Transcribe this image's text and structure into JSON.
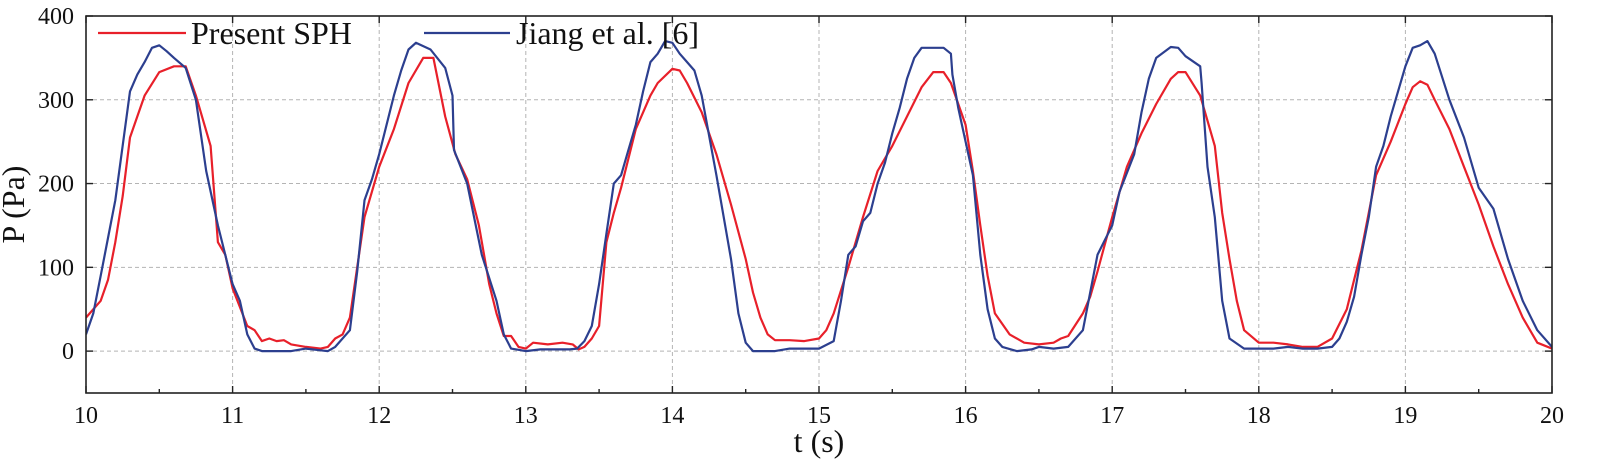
{
  "chart_data": {
    "type": "line",
    "xlabel": "t (s)",
    "ylabel": "P (Pa)",
    "xlim": [
      10,
      20
    ],
    "ylim": [
      -50,
      400
    ],
    "xticks": [
      10,
      11,
      12,
      13,
      14,
      15,
      16,
      17,
      18,
      19,
      20
    ],
    "yticks": [
      0,
      100,
      200,
      300,
      400
    ],
    "grid": true,
    "legend": {
      "placement": "top-left",
      "orientation": "horizontal"
    },
    "series": [
      {
        "name": "Present SPH",
        "color": "#e8202a",
        "points": [
          [
            10.0,
            40
          ],
          [
            10.1,
            60
          ],
          [
            10.15,
            85
          ],
          [
            10.2,
            130
          ],
          [
            10.25,
            185
          ],
          [
            10.3,
            255
          ],
          [
            10.35,
            280
          ],
          [
            10.4,
            305
          ],
          [
            10.5,
            333
          ],
          [
            10.6,
            340
          ],
          [
            10.68,
            340
          ],
          [
            10.75,
            305
          ],
          [
            10.85,
            245
          ],
          [
            10.9,
            130
          ],
          [
            10.95,
            115
          ],
          [
            11.0,
            75
          ],
          [
            11.1,
            30
          ],
          [
            11.15,
            25
          ],
          [
            11.2,
            12
          ],
          [
            11.25,
            15
          ],
          [
            11.3,
            12
          ],
          [
            11.35,
            13
          ],
          [
            11.4,
            8
          ],
          [
            11.5,
            5
          ],
          [
            11.6,
            3
          ],
          [
            11.65,
            5
          ],
          [
            11.7,
            15
          ],
          [
            11.75,
            20
          ],
          [
            11.8,
            40
          ],
          [
            11.85,
            100
          ],
          [
            11.9,
            160
          ],
          [
            12.0,
            220
          ],
          [
            12.1,
            265
          ],
          [
            12.2,
            320
          ],
          [
            12.3,
            350
          ],
          [
            12.37,
            350
          ],
          [
            12.45,
            280
          ],
          [
            12.52,
            235
          ],
          [
            12.6,
            205
          ],
          [
            12.68,
            150
          ],
          [
            12.75,
            80
          ],
          [
            12.8,
            45
          ],
          [
            12.85,
            18
          ],
          [
            12.9,
            18
          ],
          [
            12.95,
            5
          ],
          [
            13.0,
            3
          ],
          [
            13.05,
            10
          ],
          [
            13.15,
            8
          ],
          [
            13.25,
            10
          ],
          [
            13.32,
            8
          ],
          [
            13.36,
            2
          ],
          [
            13.4,
            5
          ],
          [
            13.45,
            15
          ],
          [
            13.5,
            30
          ],
          [
            13.55,
            130
          ],
          [
            13.6,
            165
          ],
          [
            13.65,
            195
          ],
          [
            13.75,
            265
          ],
          [
            13.85,
            305
          ],
          [
            13.9,
            320
          ],
          [
            14.0,
            337
          ],
          [
            14.05,
            335
          ],
          [
            14.1,
            320
          ],
          [
            14.2,
            285
          ],
          [
            14.3,
            235
          ],
          [
            14.4,
            175
          ],
          [
            14.5,
            110
          ],
          [
            14.55,
            70
          ],
          [
            14.6,
            40
          ],
          [
            14.65,
            20
          ],
          [
            14.7,
            13
          ],
          [
            14.8,
            13
          ],
          [
            14.9,
            12
          ],
          [
            15.0,
            15
          ],
          [
            15.05,
            25
          ],
          [
            15.1,
            45
          ],
          [
            15.2,
            100
          ],
          [
            15.3,
            160
          ],
          [
            15.4,
            215
          ],
          [
            15.5,
            245
          ],
          [
            15.6,
            280
          ],
          [
            15.7,
            315
          ],
          [
            15.78,
            333
          ],
          [
            15.85,
            333
          ],
          [
            15.9,
            320
          ],
          [
            16.0,
            270
          ],
          [
            16.05,
            215
          ],
          [
            16.1,
            150
          ],
          [
            16.15,
            90
          ],
          [
            16.2,
            45
          ],
          [
            16.3,
            20
          ],
          [
            16.4,
            10
          ],
          [
            16.5,
            8
          ],
          [
            16.6,
            10
          ],
          [
            16.65,
            15
          ],
          [
            16.7,
            18
          ],
          [
            16.8,
            45
          ],
          [
            16.85,
            65
          ],
          [
            16.9,
            95
          ],
          [
            17.0,
            160
          ],
          [
            17.1,
            220
          ],
          [
            17.2,
            260
          ],
          [
            17.3,
            295
          ],
          [
            17.4,
            325
          ],
          [
            17.45,
            333
          ],
          [
            17.5,
            333
          ],
          [
            17.6,
            305
          ],
          [
            17.7,
            245
          ],
          [
            17.75,
            165
          ],
          [
            17.8,
            110
          ],
          [
            17.85,
            60
          ],
          [
            17.9,
            25
          ],
          [
            18.0,
            10
          ],
          [
            18.1,
            10
          ],
          [
            18.2,
            8
          ],
          [
            18.3,
            5
          ],
          [
            18.4,
            5
          ],
          [
            18.5,
            15
          ],
          [
            18.6,
            50
          ],
          [
            18.7,
            120
          ],
          [
            18.8,
            210
          ],
          [
            18.9,
            250
          ],
          [
            19.0,
            295
          ],
          [
            19.05,
            315
          ],
          [
            19.1,
            322
          ],
          [
            19.15,
            318
          ],
          [
            19.2,
            300
          ],
          [
            19.3,
            265
          ],
          [
            19.4,
            220
          ],
          [
            19.5,
            175
          ],
          [
            19.6,
            125
          ],
          [
            19.7,
            80
          ],
          [
            19.8,
            40
          ],
          [
            19.9,
            10
          ],
          [
            20.0,
            3
          ]
        ]
      },
      {
        "name": "Jiang et al. [6]",
        "color": "#2c3f8f",
        "points": [
          [
            10.0,
            20
          ],
          [
            10.05,
            45
          ],
          [
            10.1,
            90
          ],
          [
            10.15,
            135
          ],
          [
            10.2,
            180
          ],
          [
            10.3,
            310
          ],
          [
            10.35,
            330
          ],
          [
            10.4,
            345
          ],
          [
            10.45,
            362
          ],
          [
            10.5,
            365
          ],
          [
            10.55,
            358
          ],
          [
            10.6,
            350
          ],
          [
            10.68,
            338
          ],
          [
            10.75,
            300
          ],
          [
            10.82,
            215
          ],
          [
            10.9,
            150
          ],
          [
            11.0,
            80
          ],
          [
            11.05,
            60
          ],
          [
            11.1,
            20
          ],
          [
            11.15,
            3
          ],
          [
            11.2,
            0
          ],
          [
            11.3,
            0
          ],
          [
            11.4,
            0
          ],
          [
            11.5,
            3
          ],
          [
            11.6,
            1
          ],
          [
            11.65,
            0
          ],
          [
            11.7,
            5
          ],
          [
            11.8,
            25
          ],
          [
            11.85,
            95
          ],
          [
            11.9,
            180
          ],
          [
            11.95,
            205
          ],
          [
            12.0,
            235
          ],
          [
            12.1,
            305
          ],
          [
            12.15,
            335
          ],
          [
            12.2,
            360
          ],
          [
            12.25,
            368
          ],
          [
            12.35,
            360
          ],
          [
            12.45,
            338
          ],
          [
            12.5,
            305
          ],
          [
            12.51,
            240
          ],
          [
            12.6,
            200
          ],
          [
            12.7,
            115
          ],
          [
            12.8,
            60
          ],
          [
            12.85,
            20
          ],
          [
            12.9,
            3
          ],
          [
            13.0,
            0
          ],
          [
            13.1,
            2
          ],
          [
            13.2,
            2
          ],
          [
            13.3,
            2
          ],
          [
            13.35,
            3
          ],
          [
            13.4,
            12
          ],
          [
            13.45,
            30
          ],
          [
            13.5,
            80
          ],
          [
            13.55,
            140
          ],
          [
            13.6,
            200
          ],
          [
            13.65,
            210
          ],
          [
            13.7,
            240
          ],
          [
            13.75,
            270
          ],
          [
            13.8,
            310
          ],
          [
            13.85,
            345
          ],
          [
            13.9,
            355
          ],
          [
            13.95,
            370
          ],
          [
            14.0,
            368
          ],
          [
            14.05,
            355
          ],
          [
            14.1,
            345
          ],
          [
            14.15,
            335
          ],
          [
            14.2,
            305
          ],
          [
            14.3,
            210
          ],
          [
            14.4,
            110
          ],
          [
            14.45,
            45
          ],
          [
            14.5,
            10
          ],
          [
            14.55,
            0
          ],
          [
            14.7,
            0
          ],
          [
            14.8,
            3
          ],
          [
            15.0,
            3
          ],
          [
            15.1,
            12
          ],
          [
            15.15,
            60
          ],
          [
            15.2,
            115
          ],
          [
            15.25,
            125
          ],
          [
            15.3,
            155
          ],
          [
            15.35,
            165
          ],
          [
            15.4,
            200
          ],
          [
            15.45,
            225
          ],
          [
            15.5,
            260
          ],
          [
            15.55,
            290
          ],
          [
            15.6,
            325
          ],
          [
            15.65,
            350
          ],
          [
            15.7,
            362
          ],
          [
            15.85,
            362
          ],
          [
            15.9,
            355
          ],
          [
            15.91,
            330
          ],
          [
            15.95,
            290
          ],
          [
            16.0,
            250
          ],
          [
            16.05,
            210
          ],
          [
            16.1,
            115
          ],
          [
            16.15,
            50
          ],
          [
            16.2,
            15
          ],
          [
            16.25,
            5
          ],
          [
            16.35,
            0
          ],
          [
            16.45,
            2
          ],
          [
            16.5,
            5
          ],
          [
            16.6,
            3
          ],
          [
            16.7,
            5
          ],
          [
            16.8,
            25
          ],
          [
            16.85,
            70
          ],
          [
            16.9,
            115
          ],
          [
            17.0,
            150
          ],
          [
            17.05,
            190
          ],
          [
            17.15,
            235
          ],
          [
            17.2,
            285
          ],
          [
            17.25,
            325
          ],
          [
            17.3,
            350
          ],
          [
            17.4,
            363
          ],
          [
            17.45,
            362
          ],
          [
            17.5,
            352
          ],
          [
            17.6,
            340
          ],
          [
            17.61,
            320
          ],
          [
            17.65,
            220
          ],
          [
            17.7,
            160
          ],
          [
            17.75,
            60
          ],
          [
            17.8,
            15
          ],
          [
            17.9,
            3
          ],
          [
            18.0,
            3
          ],
          [
            18.1,
            3
          ],
          [
            18.2,
            5
          ],
          [
            18.3,
            3
          ],
          [
            18.4,
            3
          ],
          [
            18.5,
            5
          ],
          [
            18.55,
            15
          ],
          [
            18.6,
            35
          ],
          [
            18.65,
            65
          ],
          [
            18.7,
            115
          ],
          [
            18.75,
            160
          ],
          [
            18.8,
            220
          ],
          [
            18.85,
            245
          ],
          [
            18.9,
            280
          ],
          [
            19.0,
            340
          ],
          [
            19.05,
            362
          ],
          [
            19.1,
            365
          ],
          [
            19.15,
            370
          ],
          [
            19.2,
            355
          ],
          [
            19.3,
            300
          ],
          [
            19.4,
            255
          ],
          [
            19.5,
            195
          ],
          [
            19.6,
            170
          ],
          [
            19.7,
            110
          ],
          [
            19.8,
            60
          ],
          [
            19.9,
            25
          ],
          [
            20.0,
            5
          ]
        ]
      }
    ]
  }
}
